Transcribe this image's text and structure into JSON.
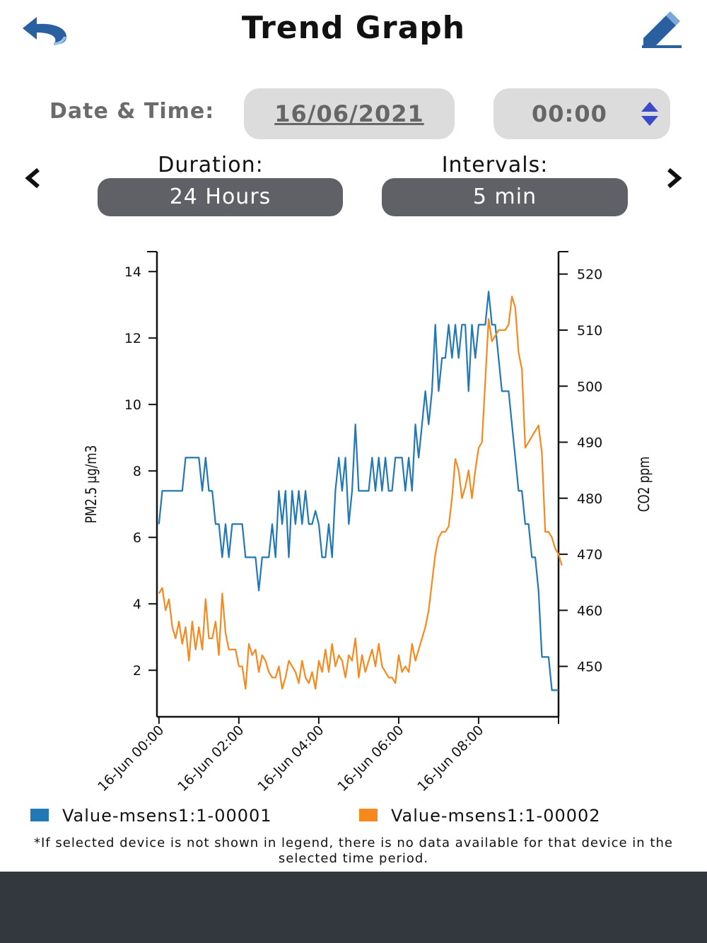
{
  "header": {
    "title": "Trend Graph",
    "back_icon": "undo-arrow-icon",
    "edit_icon": "pencil-icon"
  },
  "filters": {
    "date_time_label": "Date & Time:",
    "date_value": "16/06/2021",
    "time_value": "00:00",
    "duration_label": "Duration:",
    "duration_value": "24 Hours",
    "intervals_label": "Intervals:",
    "intervals_value": "5 min",
    "prev_icon": "chevron-left-icon",
    "next_icon": "chevron-right-icon"
  },
  "legend": [
    {
      "label": "Value-msens1:1-00001",
      "color": "#2178b4"
    },
    {
      "label": "Value-msens1:1-00002",
      "color": "#f5891e"
    }
  ],
  "note": "*If selected device is not shown in legend, there is no data available for that device in the selected time period.",
  "colors": {
    "footer": "#33373e",
    "pill_dark": "#5f6167",
    "pill_light": "#dcdcdc",
    "back_icon": "#2a5fa0",
    "edit_icon": "#2a5fa0",
    "spinner": "#3b4bc8"
  },
  "chart_data": {
    "type": "line",
    "ylabel": "PM2.5 µg/m3",
    "y2label": "CO2 ppm",
    "ylim": [
      0.6,
      14.6
    ],
    "y2lim": [
      441,
      524
    ],
    "yticks": [
      2,
      4,
      6,
      8,
      10,
      12,
      14
    ],
    "y2ticks": [
      450,
      460,
      470,
      480,
      490,
      500,
      510,
      520
    ],
    "xlim_hours": [
      -0.05,
      10.0
    ],
    "xtick_hours": [
      0,
      2,
      4,
      6,
      8
    ],
    "xticks": [
      "16-Jun 00:00",
      "16-Jun 02:00",
      "16-Jun 04:00",
      "16-Jun 06:00",
      "16-Jun 08:00"
    ],
    "x_interval_minutes": 5,
    "grid": false,
    "legend_position": "bottom",
    "series": [
      {
        "name": "Value-msens1:1-00001",
        "axis": "left",
        "color": "#2178b4",
        "values": [
          6.4,
          7.4,
          7.4,
          7.4,
          7.4,
          7.4,
          7.4,
          7.4,
          8.4,
          8.4,
          8.4,
          8.4,
          8.4,
          7.4,
          8.4,
          7.4,
          7.4,
          6.4,
          6.4,
          5.4,
          6.4,
          5.4,
          6.4,
          6.4,
          6.4,
          6.4,
          5.4,
          5.4,
          5.4,
          5.4,
          4.4,
          5.4,
          5.4,
          5.4,
          6.4,
          5.4,
          7.4,
          6.4,
          7.4,
          5.4,
          7.4,
          6.4,
          7.4,
          6.4,
          7.4,
          6.4,
          6.4,
          6.8,
          6.4,
          5.4,
          5.4,
          6.4,
          5.4,
          7.4,
          8.4,
          7.4,
          8.4,
          6.4,
          7.4,
          9.4,
          7.4,
          7.4,
          7.4,
          7.4,
          8.4,
          7.4,
          8.4,
          7.4,
          8.4,
          7.4,
          7.4,
          8.4,
          8.4,
          8.4,
          7.4,
          8.4,
          7.4,
          9.4,
          8.4,
          9.4,
          10.4,
          9.4,
          10.4,
          12.4,
          10.4,
          11.4,
          11.4,
          12.4,
          11.4,
          12.4,
          11.4,
          12.4,
          12.4,
          10.4,
          12.4,
          11.4,
          12.4,
          12.4,
          12.4,
          13.4,
          12.4,
          12.4,
          11.4,
          10.4,
          10.4,
          10.4,
          9.4,
          8.4,
          7.4,
          7.4,
          6.4,
          6.4,
          5.4,
          5.4,
          4.4,
          2.4,
          2.4,
          2.4,
          1.4,
          1.4,
          1.4
        ]
      },
      {
        "name": "Value-msens1:1-00002",
        "axis": "right",
        "color": "#f5891e",
        "values": [
          463,
          464,
          460,
          462,
          457,
          455,
          458,
          454,
          457,
          451,
          458,
          453,
          457,
          453,
          462,
          455,
          455,
          458,
          452,
          463,
          456,
          453,
          453,
          453,
          450,
          450,
          446,
          454,
          452,
          453,
          449,
          452,
          451,
          449,
          448,
          448,
          450,
          446,
          448,
          451,
          450,
          449,
          447,
          451,
          448,
          447,
          449,
          446,
          451,
          449,
          453,
          449,
          454,
          450,
          452,
          451,
          448,
          452,
          451,
          455,
          448,
          452,
          449,
          451,
          453,
          450,
          454,
          450,
          449,
          448,
          448,
          447,
          452,
          449,
          450,
          449,
          454,
          451,
          453,
          455,
          457,
          460,
          465,
          470,
          473,
          474,
          474,
          475,
          480,
          487,
          485,
          480,
          482,
          485,
          480,
          485,
          489,
          490,
          501,
          512,
          508,
          509,
          510,
          510,
          510,
          511,
          516,
          514,
          506,
          503,
          489,
          490,
          491,
          492,
          493,
          488,
          474,
          474,
          473,
          471,
          470,
          468
        ]
      }
    ]
  }
}
